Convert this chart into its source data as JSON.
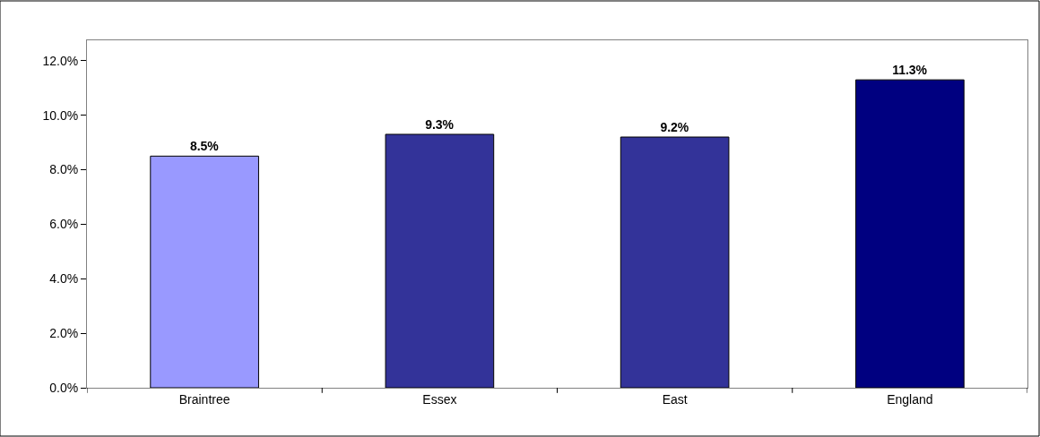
{
  "chart_data": {
    "type": "bar",
    "categories": [
      "Braintree",
      "Essex",
      "East",
      "England"
    ],
    "values": [
      8.5,
      9.3,
      9.2,
      11.3
    ],
    "colors": [
      "#9999ff",
      "#333399",
      "#333399",
      "#000080"
    ],
    "value_labels": [
      "8.5%",
      "9.3%",
      "9.2%",
      "11.3%"
    ],
    "ylim": [
      0,
      12.75
    ],
    "yticks": [
      {
        "value": 0,
        "label": "0.0%"
      },
      {
        "value": 2,
        "label": "2.0%"
      },
      {
        "value": 4,
        "label": "4.0%"
      },
      {
        "value": 6,
        "label": "6.0%"
      },
      {
        "value": 8,
        "label": "8.0%"
      },
      {
        "value": 10,
        "label": "10.0%"
      },
      {
        "value": 12,
        "label": "12.0%"
      }
    ],
    "tick_labels": true
  }
}
